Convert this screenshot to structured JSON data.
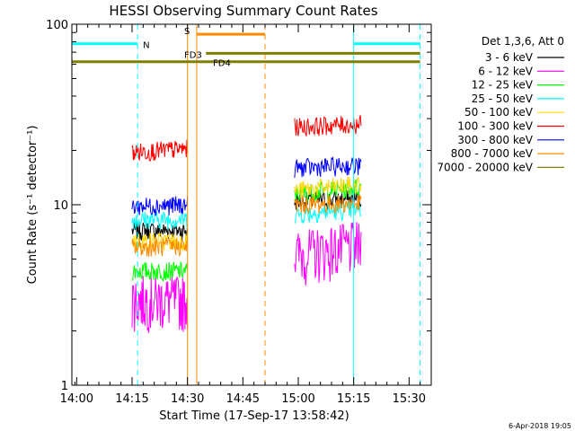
{
  "chart_data": {
    "type": "line",
    "title": "HESSI Observing Summary Count Rates",
    "xlabel": "Start Time (17-Sep-17 13:58:42)",
    "ylabel": "Count Rate (s⁻¹ detector⁻¹)",
    "y_scale": "log",
    "ylim": [
      1,
      100
    ],
    "xlim": [
      "13:58:42",
      "15:36:00"
    ],
    "x_ticks": [
      "14:00",
      "14:15",
      "14:30",
      "14:45",
      "15:00",
      "15:15",
      "15:30"
    ],
    "y_ticks": [
      "1",
      "10",
      "100"
    ],
    "footer_date": "6-Apr-2018 19:05",
    "legend": {
      "title": "Det 1,3,6, Att 0",
      "placement": "top-right"
    },
    "series": [
      {
        "name": "3 - 6 keV",
        "color": "#000000",
        "values": [
          {
            "x": "14:15",
            "y": 7.2
          },
          {
            "x": "14:30",
            "y": 7.2
          },
          {
            "x": "14:59",
            "y": 10.5
          },
          {
            "x": "15:17",
            "y": 10.8
          }
        ]
      },
      {
        "name": "6 - 12 keV",
        "color": "#ff00ff",
        "values": [
          {
            "x": "14:15",
            "y": 3.0
          },
          {
            "x": "14:30",
            "y": 3.0
          },
          {
            "x": "14:59",
            "y": 5.3
          },
          {
            "x": "15:17",
            "y": 6.0
          }
        ]
      },
      {
        "name": "12 - 25 keV",
        "color": "#00ff00",
        "values": [
          {
            "x": "14:15",
            "y": 4.3
          },
          {
            "x": "14:30",
            "y": 4.3
          },
          {
            "x": "14:59",
            "y": 11.5
          },
          {
            "x": "15:17",
            "y": 12.5
          }
        ]
      },
      {
        "name": "25 - 50 keV",
        "color": "#00ffff",
        "values": [
          {
            "x": "14:15",
            "y": 8.3
          },
          {
            "x": "14:30",
            "y": 8.3
          },
          {
            "x": "14:59",
            "y": 8.8
          },
          {
            "x": "15:17",
            "y": 9.5
          }
        ]
      },
      {
        "name": "50 - 100 keV",
        "color": "#ffd700",
        "values": [
          {
            "x": "14:15",
            "y": 6.3
          },
          {
            "x": "14:30",
            "y": 6.3
          },
          {
            "x": "14:59",
            "y": 12.0
          },
          {
            "x": "15:17",
            "y": 13.0
          }
        ]
      },
      {
        "name": "100 - 300 keV",
        "color": "#ff0000",
        "values": [
          {
            "x": "14:15",
            "y": 19.5
          },
          {
            "x": "14:30",
            "y": 20.5
          },
          {
            "x": "14:59",
            "y": 27.0
          },
          {
            "x": "15:17",
            "y": 28.0
          }
        ]
      },
      {
        "name": "300 - 800 keV",
        "color": "#0000ff",
        "values": [
          {
            "x": "14:15",
            "y": 9.8
          },
          {
            "x": "14:30",
            "y": 10.0
          },
          {
            "x": "14:59",
            "y": 16.0
          },
          {
            "x": "15:17",
            "y": 16.5
          }
        ]
      },
      {
        "name": "800 - 7000 keV",
        "color": "#ff8c00",
        "values": [
          {
            "x": "14:15",
            "y": 5.8
          },
          {
            "x": "14:30",
            "y": 5.9
          },
          {
            "x": "14:59",
            "y": 10.0
          },
          {
            "x": "15:17",
            "y": 10.2
          }
        ]
      },
      {
        "name": "7000 - 20000 keV",
        "color": "#808000",
        "values": []
      }
    ],
    "flag_bars": [
      {
        "label": "N",
        "color": "#00ffff",
        "ranges": [
          [
            "13:58:42",
            "14:16:30"
          ],
          [
            "15:15:00",
            "15:33:00"
          ]
        ],
        "y": 78
      },
      {
        "label": "S",
        "color": "#ff8c00",
        "ranges": [
          [
            "14:32:30",
            "14:51:00"
          ]
        ],
        "y": 88
      },
      {
        "label": "FD3",
        "color": "#808000",
        "ranges": [
          [
            "14:35:00",
            "15:33:00"
          ]
        ],
        "y": 69
      },
      {
        "label": "FD4",
        "color": "#808000",
        "ranges": [
          [
            "13:58:42",
            "15:33:00"
          ]
        ],
        "y": 62
      }
    ],
    "vertical_lines": [
      {
        "x": "13:58:42",
        "color": "#00ffff",
        "style": "solid"
      },
      {
        "x": "14:16:30",
        "color": "#00ffff",
        "style": "dashed"
      },
      {
        "x": "14:30:00",
        "color": "#ff8c00",
        "style": "solid"
      },
      {
        "x": "14:32:30",
        "color": "#ff8c00",
        "style": "solid"
      },
      {
        "x": "14:51:00",
        "color": "#ff8c00",
        "style": "dashed"
      },
      {
        "x": "15:15:00",
        "color": "#00ffff",
        "style": "solid"
      },
      {
        "x": "15:33:00",
        "color": "#00ffff",
        "style": "dashed"
      }
    ],
    "data_gaps": [
      [
        "14:31:10",
        "14:52:30"
      ]
    ],
    "grid": false
  }
}
